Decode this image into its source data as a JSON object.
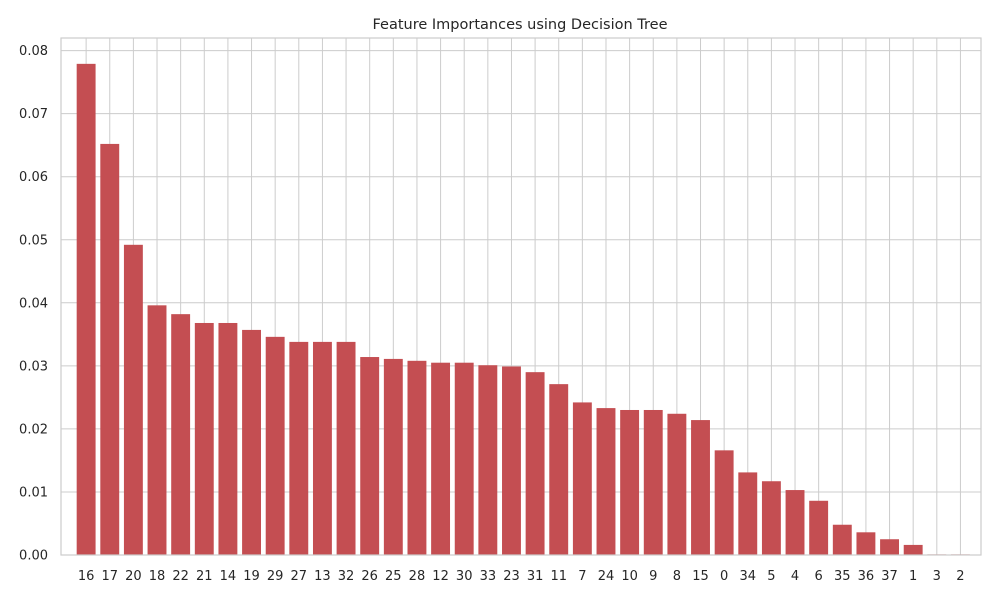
{
  "chart_data": {
    "type": "bar",
    "title": "Feature Importances using Decision Tree",
    "xlabel": "",
    "ylabel": "",
    "categories": [
      "16",
      "17",
      "20",
      "18",
      "22",
      "21",
      "14",
      "19",
      "29",
      "27",
      "13",
      "32",
      "26",
      "25",
      "28",
      "12",
      "30",
      "33",
      "23",
      "31",
      "11",
      "7",
      "24",
      "10",
      "9",
      "8",
      "15",
      "0",
      "34",
      "5",
      "4",
      "6",
      "35",
      "36",
      "37",
      "1",
      "3",
      "2"
    ],
    "values": [
      0.0779,
      0.0652,
      0.0492,
      0.0396,
      0.0382,
      0.0368,
      0.0368,
      0.0357,
      0.0346,
      0.0338,
      0.0338,
      0.0338,
      0.0314,
      0.0311,
      0.0308,
      0.0305,
      0.0305,
      0.0301,
      0.0299,
      0.029,
      0.0271,
      0.0242,
      0.0233,
      0.023,
      0.023,
      0.0224,
      0.0214,
      0.0166,
      0.0131,
      0.0117,
      0.0103,
      0.0086,
      0.0048,
      0.0036,
      0.0025,
      0.0016,
      0.0001,
      0.0001
    ],
    "ylim": [
      0,
      0.082
    ],
    "yticks": [
      "0.00",
      "0.01",
      "0.02",
      "0.03",
      "0.04",
      "0.05",
      "0.06",
      "0.07",
      "0.08"
    ],
    "grid": true,
    "bar_color": "#c44e52",
    "grid_color": "#cccccc"
  }
}
